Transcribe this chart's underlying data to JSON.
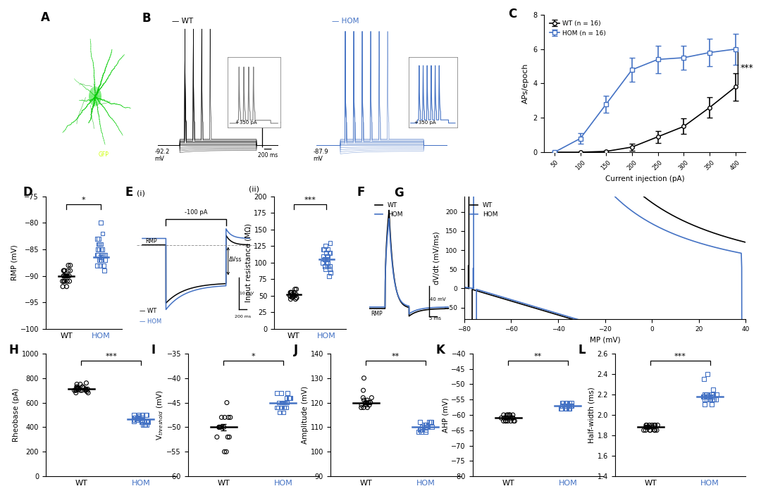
{
  "panel_C": {
    "x": [
      50,
      100,
      150,
      200,
      250,
      300,
      350,
      400
    ],
    "wt_y": [
      0.0,
      0.0,
      0.05,
      0.3,
      0.9,
      1.5,
      2.6,
      3.8
    ],
    "wt_err": [
      0.0,
      0.0,
      0.05,
      0.2,
      0.35,
      0.45,
      0.6,
      0.8
    ],
    "hom_y": [
      0.0,
      0.8,
      2.8,
      4.8,
      5.4,
      5.5,
      5.8,
      6.0
    ],
    "hom_err": [
      0.0,
      0.3,
      0.5,
      0.7,
      0.8,
      0.7,
      0.8,
      0.9
    ],
    "wt_label": "WT (n = 16)",
    "hom_label": "HOM (n = 16)",
    "xlabel": "Current injection (pA)",
    "ylabel": "APs/epoch",
    "ylim": [
      0,
      8
    ],
    "sig": "***"
  },
  "panel_D": {
    "wt_points": [
      -90,
      -89,
      -88,
      -91,
      -90,
      -89,
      -92,
      -91,
      -90,
      -89,
      -91,
      -88,
      -90,
      -89,
      -91,
      -90,
      -91,
      -92,
      -90,
      -89
    ],
    "hom_points": [
      -86,
      -85,
      -87,
      -88,
      -84,
      -86,
      -83,
      -85,
      -87,
      -86,
      -85,
      -84,
      -83,
      -86,
      -87,
      -88,
      -84,
      -85,
      -82,
      -80,
      -86,
      -87,
      -88,
      -89,
      -85
    ],
    "wt_mean": -90.0,
    "hom_mean": -86.5,
    "ylabel": "RMP (mV)",
    "ylim": [
      -100,
      -75
    ],
    "sig": "*"
  },
  "panel_Eii": {
    "wt_points": [
      45,
      50,
      55,
      48,
      52,
      47,
      60,
      55,
      50,
      45,
      48,
      52,
      55,
      50,
      47,
      55,
      50,
      48,
      55,
      60
    ],
    "hom_points": [
      80,
      85,
      90,
      95,
      100,
      110,
      120,
      115,
      105,
      95,
      100,
      110,
      115,
      120,
      85,
      90,
      95,
      105,
      110,
      120,
      130,
      125,
      115,
      100,
      95
    ],
    "wt_mean": 52.0,
    "hom_mean": 105.0,
    "ylabel": "Input resistance (MΩ)",
    "ylim": [
      0,
      200
    ],
    "sig": "***"
  },
  "panel_H": {
    "wt_points": [
      700,
      720,
      750,
      760,
      700,
      680,
      720,
      710,
      700,
      730,
      690,
      710,
      750,
      700,
      720,
      680,
      710,
      730,
      700,
      720,
      700,
      710,
      700,
      710,
      720
    ],
    "hom_points": [
      500,
      450,
      480,
      420,
      460,
      500,
      440,
      480,
      490,
      460,
      420,
      440,
      480,
      500,
      460,
      440,
      420,
      480,
      500,
      460,
      440,
      420,
      460,
      480,
      500,
      440,
      450,
      470,
      500,
      480
    ],
    "wt_mean": 712,
    "hom_mean": 464,
    "ylabel": "Rheobase (pA)",
    "ylim": [
      0,
      1000
    ],
    "sig": "***"
  },
  "panel_I": {
    "wt_points": [
      -50,
      -48,
      -52,
      -50,
      -55,
      -48,
      -50,
      -52,
      -45,
      -50,
      -55,
      -48,
      -50,
      -52,
      -48,
      -50
    ],
    "hom_points": [
      -46,
      -45,
      -44,
      -47,
      -46,
      -45,
      -43,
      -46,
      -45,
      -44,
      -47,
      -46,
      -45,
      -46,
      -44,
      -43,
      -45,
      -46,
      -44,
      -43
    ],
    "wt_mean": -50.0,
    "hom_mean": -45.0,
    "ylabel": "V$_{threshold}$ (mV)",
    "ylim": [
      -60,
      -35
    ],
    "sig": "*"
  },
  "panel_J": {
    "wt_points": [
      118,
      120,
      122,
      119,
      121,
      120,
      118,
      125,
      130,
      119,
      120,
      122,
      119,
      121,
      120,
      118
    ],
    "hom_points": [
      108,
      110,
      112,
      109,
      111,
      108,
      110,
      112,
      109,
      108,
      110,
      112,
      109,
      111,
      108,
      110,
      112,
      109,
      111,
      110
    ],
    "wt_mean": 120.0,
    "hom_mean": 110.0,
    "ylabel": "Amplitude (mV)",
    "ylim": [
      90,
      140
    ],
    "sig": "**"
  },
  "panel_K": {
    "wt_points": [
      -61,
      -60,
      -62,
      -61,
      -60,
      -62,
      -61,
      -60,
      -62,
      -61,
      -60,
      -62,
      -61,
      -60,
      -62,
      -61,
      -62,
      -61,
      -60,
      -62
    ],
    "hom_points": [
      -57,
      -56,
      -58,
      -57,
      -56,
      -58,
      -57,
      -56,
      -58,
      -57,
      -56,
      -58,
      -57,
      -56,
      -57,
      -58,
      -57,
      -56,
      -57,
      -58,
      -57,
      -56,
      -57,
      -58
    ],
    "wt_mean": -61.0,
    "hom_mean": -57.0,
    "ylabel": "AHP (mV)",
    "ylim": [
      -80,
      -40
    ],
    "sig": "**"
  },
  "panel_L": {
    "wt_points": [
      1.85,
      1.9,
      1.85,
      1.88,
      1.9,
      1.85,
      1.88,
      1.9,
      1.85,
      1.88,
      1.9,
      1.85,
      1.88,
      1.9,
      1.85,
      1.88,
      1.9,
      1.85,
      1.88,
      1.9
    ],
    "hom_points": [
      2.1,
      2.15,
      2.2,
      2.18,
      2.15,
      2.2,
      2.18,
      2.15,
      2.2,
      2.18,
      2.15,
      2.2,
      2.18,
      2.15,
      2.2,
      2.18,
      2.15,
      2.2,
      2.15,
      2.2,
      2.1,
      2.15,
      2.4,
      2.35,
      2.25
    ],
    "wt_mean": 1.88,
    "hom_mean": 2.18,
    "ylabel": "Half-width (ms)",
    "ylim": [
      1.4,
      2.6
    ],
    "sig": "***"
  },
  "colors": {
    "wt": "#000000",
    "hom": "#4472C4"
  }
}
